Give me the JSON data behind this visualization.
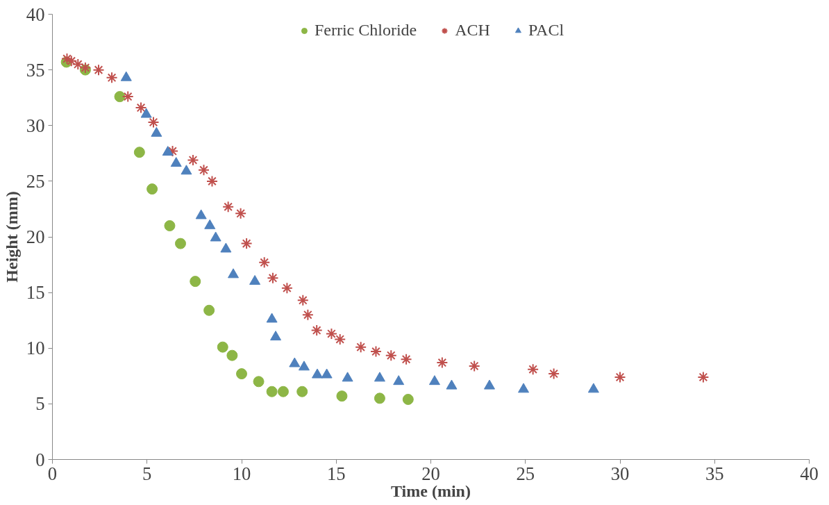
{
  "chart_data": {
    "type": "scatter",
    "xlabel": "Time (min)",
    "ylabel": "Height (mm)",
    "xlim": [
      0,
      40
    ],
    "ylim": [
      0,
      40
    ],
    "xticks": [
      0,
      5,
      10,
      15,
      20,
      25,
      30,
      35,
      40
    ],
    "yticks": [
      0,
      5,
      10,
      15,
      20,
      25,
      30,
      35,
      40
    ],
    "grid": false,
    "legend": "top",
    "series": [
      {
        "name": "Ferric Chloride",
        "color": "#8db646",
        "marker": "circle",
        "x": [
          0.74,
          1.74,
          3.56,
          4.6,
          5.27,
          6.2,
          6.77,
          7.55,
          8.28,
          9.0,
          9.5,
          10.0,
          10.9,
          11.6,
          12.2,
          13.2,
          15.3,
          17.3,
          18.8
        ],
        "values": [
          35.7,
          35.0,
          32.6,
          27.6,
          24.3,
          21.0,
          19.4,
          16.0,
          13.4,
          10.1,
          9.35,
          7.7,
          7.0,
          6.1,
          6.1,
          6.1,
          5.7,
          5.5,
          5.4
        ]
      },
      {
        "name": "ACH",
        "color": "#c0504d",
        "marker": "cross",
        "x": [
          0.77,
          1.0,
          1.35,
          1.74,
          2.44,
          3.14,
          3.99,
          4.68,
          5.34,
          6.35,
          7.43,
          8.0,
          8.44,
          9.29,
          9.95,
          10.26,
          11.2,
          11.65,
          12.4,
          13.24,
          13.5,
          13.97,
          14.75,
          15.2,
          16.3,
          17.1,
          17.9,
          18.7,
          20.6,
          22.3,
          25.4,
          26.5,
          30.0,
          34.4
        ],
        "values": [
          36.0,
          35.8,
          35.5,
          35.2,
          35.0,
          34.3,
          32.6,
          31.6,
          30.3,
          27.7,
          26.9,
          26.0,
          25.0,
          22.7,
          22.1,
          19.4,
          17.7,
          16.3,
          15.4,
          14.3,
          13.0,
          11.6,
          11.3,
          10.8,
          10.1,
          9.7,
          9.35,
          9.0,
          8.7,
          8.4,
          8.1,
          7.7,
          7.4,
          7.4
        ]
      },
      {
        "name": "PACl",
        "color": "#4f81bd",
        "marker": "triangle",
        "x": [
          3.9,
          4.96,
          5.5,
          6.1,
          6.54,
          7.08,
          7.86,
          8.32,
          8.63,
          9.17,
          9.56,
          10.7,
          11.6,
          11.8,
          12.8,
          13.3,
          14.0,
          14.5,
          15.6,
          17.3,
          18.3,
          20.2,
          21.1,
          23.1,
          24.9,
          28.6
        ],
        "values": [
          34.3,
          31.0,
          29.3,
          27.6,
          26.6,
          25.9,
          21.9,
          21.0,
          19.9,
          18.9,
          16.6,
          16.0,
          12.6,
          11.0,
          8.6,
          8.3,
          7.6,
          7.6,
          7.3,
          7.3,
          7.0,
          7.0,
          6.6,
          6.6,
          6.3,
          6.3
        ]
      }
    ]
  }
}
